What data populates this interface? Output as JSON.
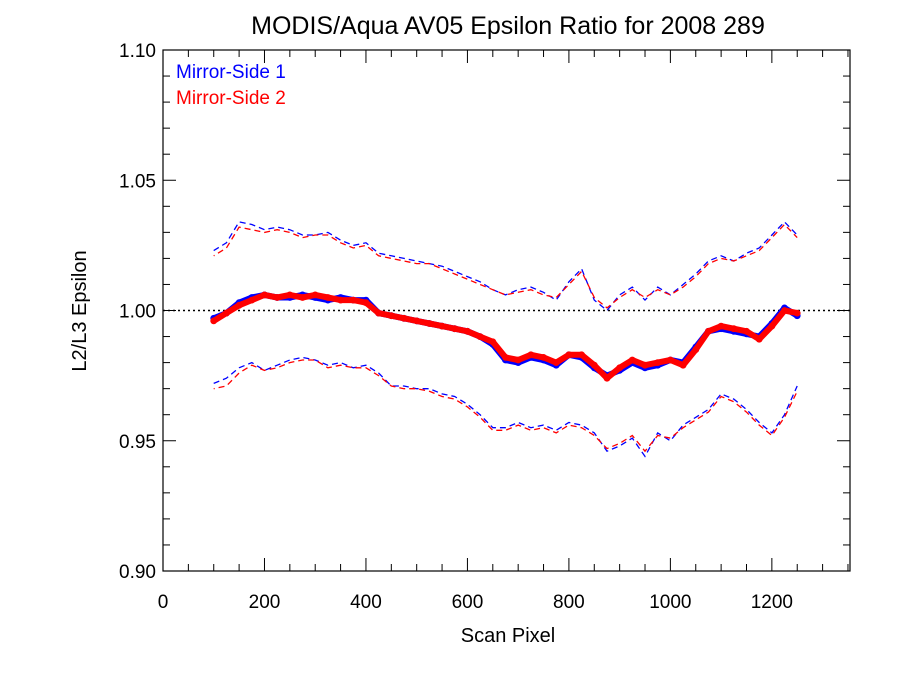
{
  "chart_data": {
    "type": "line",
    "title": "MODIS/Aqua AV05 Epsilon Ratio for 2008 289",
    "xlabel": "Scan Pixel",
    "ylabel": "L2/L3 Epsilon",
    "xlim": [
      0,
      1354
    ],
    "ylim": [
      0.9,
      1.1
    ],
    "xticks": [
      0,
      200,
      400,
      600,
      800,
      1000,
      1200
    ],
    "xtick_labels": [
      "0",
      "200",
      "400",
      "600",
      "800",
      "1000",
      "1200"
    ],
    "yticks": [
      0.9,
      0.95,
      1.0,
      1.05,
      1.1
    ],
    "ytick_labels": [
      "0.90",
      "0.95",
      "1.00",
      "1.05",
      "1.10"
    ],
    "reference_line": 1.0,
    "grid": false,
    "legend_position": "top-left",
    "x": [
      100,
      125,
      150,
      175,
      200,
      225,
      250,
      275,
      300,
      325,
      350,
      375,
      400,
      425,
      450,
      475,
      500,
      525,
      550,
      575,
      600,
      625,
      650,
      675,
      700,
      725,
      750,
      775,
      800,
      825,
      850,
      875,
      900,
      925,
      950,
      975,
      1000,
      1025,
      1050,
      1075,
      1100,
      1125,
      1150,
      1175,
      1200,
      1225,
      1250
    ],
    "series": [
      {
        "name": "Mirror-Side 1",
        "color": "#0000ff",
        "mean": [
          0.997,
          0.999,
          1.003,
          1.005,
          1.006,
          1.005,
          1.005,
          1.006,
          1.005,
          1.004,
          1.005,
          1.004,
          1.004,
          0.999,
          0.998,
          0.997,
          0.996,
          0.995,
          0.994,
          0.993,
          0.992,
          0.99,
          0.987,
          0.981,
          0.98,
          0.982,
          0.981,
          0.979,
          0.983,
          0.982,
          0.978,
          0.975,
          0.977,
          0.98,
          0.978,
          0.979,
          0.981,
          0.98,
          0.986,
          0.992,
          0.993,
          0.992,
          0.991,
          0.99,
          0.995,
          1.001,
          0.998
        ],
        "upper": [
          1.023,
          1.026,
          1.034,
          1.033,
          1.031,
          1.032,
          1.031,
          1.029,
          1.029,
          1.03,
          1.027,
          1.025,
          1.026,
          1.022,
          1.021,
          1.02,
          1.019,
          1.018,
          1.017,
          1.015,
          1.013,
          1.011,
          1.008,
          1.006,
          1.008,
          1.009,
          1.007,
          1.004,
          1.011,
          1.016,
          1.004,
          1.0,
          1.006,
          1.009,
          1.004,
          1.009,
          1.006,
          1.01,
          1.014,
          1.019,
          1.021,
          1.019,
          1.022,
          1.024,
          1.029,
          1.034,
          1.029
        ],
        "lower": [
          0.972,
          0.974,
          0.978,
          0.98,
          0.977,
          0.979,
          0.981,
          0.982,
          0.981,
          0.979,
          0.98,
          0.978,
          0.979,
          0.976,
          0.971,
          0.971,
          0.97,
          0.97,
          0.968,
          0.967,
          0.964,
          0.96,
          0.955,
          0.955,
          0.957,
          0.955,
          0.956,
          0.954,
          0.957,
          0.956,
          0.953,
          0.946,
          0.948,
          0.951,
          0.944,
          0.953,
          0.95,
          0.956,
          0.959,
          0.962,
          0.968,
          0.966,
          0.962,
          0.957,
          0.953,
          0.96,
          0.971
        ]
      },
      {
        "name": "Mirror-Side 2",
        "color": "#ff0000",
        "mean": [
          0.996,
          0.999,
          1.002,
          1.004,
          1.006,
          1.005,
          1.006,
          1.005,
          1.006,
          1.005,
          1.004,
          1.004,
          1.003,
          0.999,
          0.998,
          0.997,
          0.996,
          0.995,
          0.994,
          0.993,
          0.992,
          0.99,
          0.988,
          0.982,
          0.981,
          0.983,
          0.982,
          0.98,
          0.983,
          0.983,
          0.979,
          0.974,
          0.978,
          0.981,
          0.979,
          0.98,
          0.981,
          0.979,
          0.985,
          0.992,
          0.994,
          0.993,
          0.992,
          0.989,
          0.994,
          1.0,
          0.999
        ],
        "upper": [
          1.021,
          1.024,
          1.032,
          1.031,
          1.03,
          1.031,
          1.03,
          1.028,
          1.029,
          1.029,
          1.026,
          1.024,
          1.025,
          1.021,
          1.02,
          1.019,
          1.018,
          1.018,
          1.016,
          1.014,
          1.012,
          1.01,
          1.008,
          1.006,
          1.007,
          1.008,
          1.006,
          1.005,
          1.01,
          1.015,
          1.005,
          1.001,
          1.005,
          1.008,
          1.005,
          1.008,
          1.006,
          1.009,
          1.013,
          1.018,
          1.02,
          1.019,
          1.021,
          1.023,
          1.028,
          1.033,
          1.028
        ],
        "lower": [
          0.97,
          0.971,
          0.976,
          0.979,
          0.977,
          0.978,
          0.98,
          0.981,
          0.981,
          0.978,
          0.979,
          0.978,
          0.978,
          0.975,
          0.971,
          0.97,
          0.97,
          0.969,
          0.967,
          0.966,
          0.963,
          0.959,
          0.954,
          0.954,
          0.956,
          0.954,
          0.955,
          0.953,
          0.956,
          0.955,
          0.952,
          0.947,
          0.949,
          0.952,
          0.946,
          0.952,
          0.951,
          0.955,
          0.958,
          0.961,
          0.967,
          0.965,
          0.961,
          0.956,
          0.952,
          0.959,
          0.969
        ]
      }
    ]
  }
}
